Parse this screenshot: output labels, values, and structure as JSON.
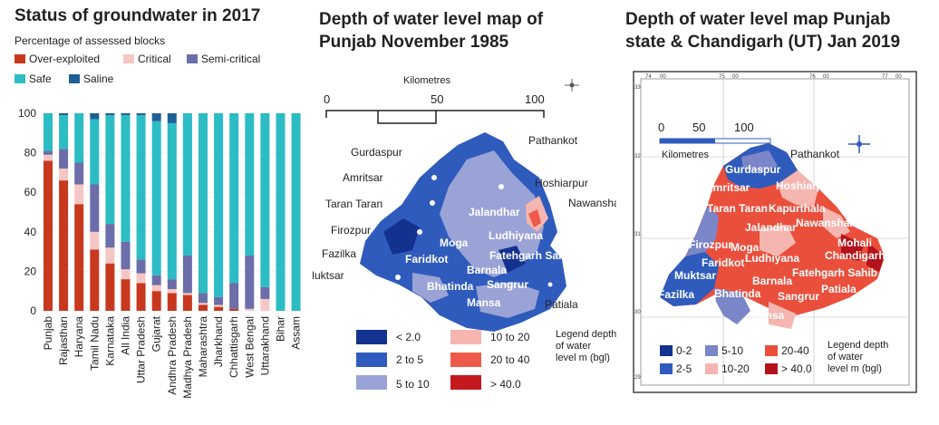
{
  "panel1": {
    "title": "Status of groundwater in 2017",
    "subtitle": "Percentage of assessed blocks",
    "legend": [
      {
        "label": "Over-exploited",
        "color": "#c8381f"
      },
      {
        "label": "Critical",
        "color": "#f5c7c4"
      },
      {
        "label": "Semi-critical",
        "color": "#6b6ea8"
      },
      {
        "label": "Safe",
        "color": "#2bbcc4"
      },
      {
        "label": "Saline",
        "color": "#1f5f97"
      }
    ]
  },
  "chart_data": {
    "type": "bar",
    "stacked": true,
    "title": "Status of groundwater in 2017",
    "subtitle": "Percentage of assessed blocks",
    "categories": [
      "Punjab",
      "Rajasthan",
      "Haryana",
      "Tamil Nadu",
      "Karnataka",
      "All India",
      "Uttar Pradesh",
      "Gujarat",
      "Andhra Pradesh",
      "Madhya Pradesh",
      "Maharashtra",
      "Jharkhand",
      "Chhattisgarh",
      "West Bengal",
      "Uttarakhand",
      "Bihar",
      "Assam"
    ],
    "ylim": [
      0,
      100
    ],
    "yticks": [
      0,
      20,
      40,
      60,
      80,
      100
    ],
    "series": [
      {
        "name": "Over-exploited",
        "color": "#c8381f",
        "values": [
          76,
          66,
          54,
          31,
          24,
          16,
          14,
          10,
          9,
          8,
          3,
          2,
          1,
          0,
          0,
          0,
          0
        ]
      },
      {
        "name": "Critical",
        "color": "#f5c7c4",
        "values": [
          3,
          6,
          10,
          9,
          8,
          5,
          5,
          3,
          2,
          1,
          1,
          1,
          0,
          1,
          6,
          0,
          0
        ]
      },
      {
        "name": "Semi-critical",
        "color": "#6b6ea8",
        "values": [
          2,
          10,
          11,
          24,
          12,
          14,
          7,
          5,
          5,
          19,
          5,
          4,
          13,
          27,
          6,
          0,
          0
        ]
      },
      {
        "name": "Safe",
        "color": "#2bbcc4",
        "values": [
          19,
          17,
          25,
          33,
          55,
          64,
          73,
          78,
          79,
          72,
          91,
          93,
          86,
          72,
          88,
          100,
          100
        ]
      },
      {
        "name": "Saline",
        "color": "#1f5f97",
        "values": [
          0,
          1,
          0,
          3,
          1,
          1,
          1,
          4,
          5,
          0,
          0,
          0,
          0,
          0,
          0,
          0,
          0
        ]
      }
    ]
  },
  "map1": {
    "title_line1": "Depth of water level map of",
    "title_line2": "Punjab November 1985",
    "scale_unit": "Kilometres",
    "scale_ticks": [
      "0",
      "50",
      "100"
    ],
    "places": [
      "Pathankot",
      "Gurdaspur",
      "Amritsar",
      "Hoshiarpur",
      "Taran Taran",
      "Nawanshahr",
      "Jalandhar",
      "Firozpur",
      "Ludhiyana",
      "Moga",
      "Fazilka",
      "Fatehgarh Sahib",
      "Faridkot",
      "Muktsar",
      "Barnala",
      "Bhatinda",
      "Sangrur",
      "Mansa",
      "Patiala"
    ],
    "legend_title": "Legend depth of water level m (bgl)",
    "legend_title_lines": [
      "Legend depth",
      "of water",
      "level m (bgl)"
    ],
    "legend": [
      {
        "label": "< 2.0",
        "color": "#13318f"
      },
      {
        "label": "2 to 5",
        "color": "#2f5bbd"
      },
      {
        "label": "5 to 10",
        "color": "#9aa3d6"
      },
      {
        "label": "10 to 20",
        "color": "#f5b5b0"
      },
      {
        "label": "20 to 40",
        "color": "#ee5a4a"
      },
      {
        "label": "> 40.0",
        "color": "#c3191e"
      }
    ]
  },
  "map2": {
    "title_line1": "Depth of water level map Punjab",
    "title_line2": "state & Chandigarh (UT) Jan 2019",
    "scale_unit": "Kilometres",
    "scale_ticks": [
      "0",
      "50",
      "100"
    ],
    "grid_labels": [
      "74",
      "00",
      "75",
      "00",
      "76",
      "00",
      "77",
      "00",
      "33",
      "00",
      "32",
      "31",
      "30",
      "29"
    ],
    "places": [
      "Pathankot",
      "Gurdaspur",
      "Amritsar",
      "Hoshiarpur",
      "Taran Taran",
      "Kapurthala",
      "Jalandhar",
      "Nawanshahr",
      "Mohali",
      "Firozpur",
      "Moga",
      "Chandigarh",
      "Faridkot",
      "Ludhiyana",
      "Fatehgarh Sahib",
      "Muktsar",
      "Barnala",
      "Patiala",
      "Fazilka",
      "Bhatinda",
      "Sangrur",
      "Mansa"
    ],
    "legend_title": "Legend depth of water level m (bgl)",
    "legend_title_lines": [
      "Legend depth",
      "of water",
      "level m (bgl)"
    ],
    "legend": [
      {
        "label": "0-2",
        "color": "#13318f"
      },
      {
        "label": "5-10",
        "color": "#7b86c8"
      },
      {
        "label": "20-40",
        "color": "#ea4f3c"
      },
      {
        "label": "2-5",
        "color": "#2f5bbd"
      },
      {
        "label": "10-20",
        "color": "#f5b5b0"
      },
      {
        "label": "> 40.0",
        "color": "#b3121a"
      }
    ]
  }
}
